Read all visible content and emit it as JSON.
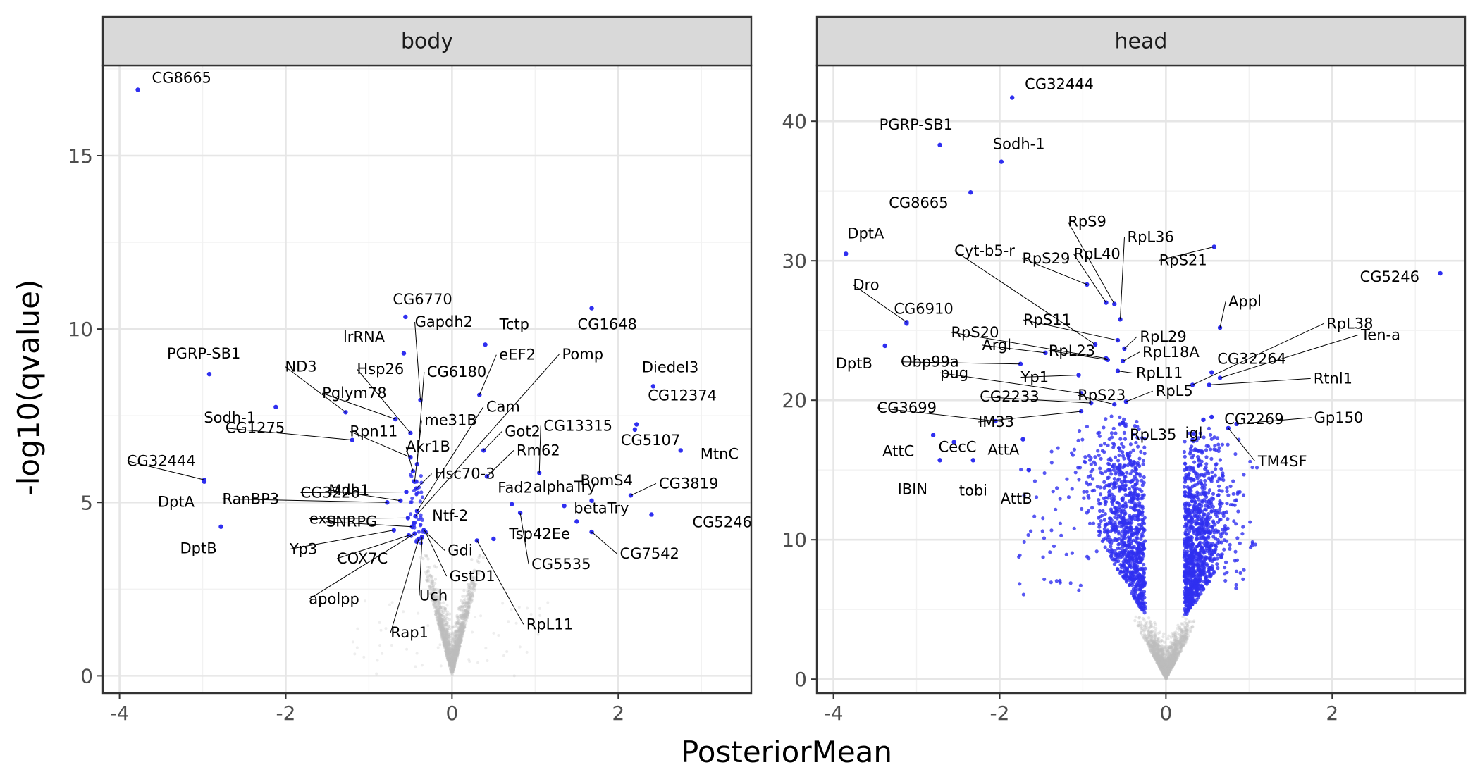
{
  "figure": {
    "xlabel": "PosteriorMean",
    "ylabel": "-log10(qvalue)"
  },
  "chart_data": [
    {
      "type": "scatter",
      "panel": "body",
      "xlabel": "PosteriorMean",
      "ylabel": "-log10(qvalue)",
      "xlim": [
        -4.2,
        3.6
      ],
      "ylim": [
        -0.5,
        17.6
      ],
      "x_ticks": [
        -4,
        -2,
        0,
        2
      ],
      "y_ticks": [
        0,
        5,
        10,
        15
      ],
      "grid": true,
      "colors": {
        "significant": "#2f2ff0",
        "non_significant": "#bdbdbd"
      },
      "labeled_points": [
        {
          "label": "CG8665",
          "x": -3.78,
          "y": 16.9
        },
        {
          "label": "PGRP-SB1",
          "x": -2.92,
          "y": 8.7
        },
        {
          "label": "Sodh-1",
          "x": -2.12,
          "y": 7.75
        },
        {
          "label": "CG32444",
          "x": -2.98,
          "y": 5.65
        },
        {
          "label": "DptA",
          "x": -2.98,
          "y": 5.6
        },
        {
          "label": "DptB",
          "x": -2.78,
          "y": 4.3
        },
        {
          "label": "CG1275",
          "x": -1.2,
          "y": 6.8
        },
        {
          "label": "ND3",
          "x": -1.28,
          "y": 7.6
        },
        {
          "label": "lrRNA",
          "x": -0.58,
          "y": 9.3
        },
        {
          "label": "Pglym78",
          "x": -0.68,
          "y": 7.4
        },
        {
          "label": "Hsp26",
          "x": -0.5,
          "y": 7.0
        },
        {
          "label": "Gapdh2",
          "x": -0.38,
          "y": 7.95
        },
        {
          "label": "CG6770",
          "x": -0.56,
          "y": 10.35
        },
        {
          "label": "CG6180",
          "x": -0.42,
          "y": 6.1
        },
        {
          "label": "Rpn11",
          "x": -0.5,
          "y": 6.3
        },
        {
          "label": "Akr1B",
          "x": -0.47,
          "y": 5.9
        },
        {
          "label": "me31B",
          "x": -0.45,
          "y": 5.6
        },
        {
          "label": "CG3226",
          "x": -0.55,
          "y": 5.3
        },
        {
          "label": "Hsc70-3",
          "x": -0.43,
          "y": 5.4
        },
        {
          "label": "Mdh1",
          "x": -0.62,
          "y": 5.05
        },
        {
          "label": "RanBP3",
          "x": -0.78,
          "y": 5.0
        },
        {
          "label": "Cam",
          "x": -0.42,
          "y": 4.75
        },
        {
          "label": "Pomp",
          "x": -0.44,
          "y": 4.6
        },
        {
          "label": "Tctp",
          "x": 0.4,
          "y": 9.55
        },
        {
          "label": "eEF2",
          "x": 0.33,
          "y": 8.1
        },
        {
          "label": "Got2",
          "x": 0.38,
          "y": 6.5
        },
        {
          "label": "CG13315",
          "x": 1.05,
          "y": 5.85
        },
        {
          "label": "Rm62",
          "x": 0.42,
          "y": 5.75
        },
        {
          "label": "Ntf-2",
          "x": -0.46,
          "y": 4.4
        },
        {
          "label": "exu",
          "x": -0.53,
          "y": 4.55
        },
        {
          "label": "SNRPG",
          "x": -0.48,
          "y": 4.3
        },
        {
          "label": "Yp3",
          "x": -0.7,
          "y": 4.2
        },
        {
          "label": "COX7C",
          "x": -0.52,
          "y": 4.05
        },
        {
          "label": "apolpp",
          "x": -0.45,
          "y": 4.1
        },
        {
          "label": "Rap1",
          "x": -0.4,
          "y": 3.95
        },
        {
          "label": "Uch",
          "x": -0.36,
          "y": 4.0
        },
        {
          "label": "Gdi",
          "x": -0.34,
          "y": 4.2
        },
        {
          "label": "GstD1",
          "x": -0.32,
          "y": 4.15
        },
        {
          "label": "RpL11",
          "x": 0.3,
          "y": 3.9
        },
        {
          "label": "Tsp42Ee",
          "x": 0.5,
          "y": 3.95
        },
        {
          "label": "CG5535",
          "x": 0.82,
          "y": 4.7
        },
        {
          "label": "Fad2",
          "x": 0.72,
          "y": 4.95
        },
        {
          "label": "alphaTry",
          "x": 1.35,
          "y": 4.9
        },
        {
          "label": "BomS4",
          "x": 1.68,
          "y": 5.05
        },
        {
          "label": "betaTry",
          "x": 1.5,
          "y": 4.45
        },
        {
          "label": "CG7542",
          "x": 1.68,
          "y": 4.15
        },
        {
          "label": "CG1648",
          "x": 1.68,
          "y": 10.6
        },
        {
          "label": "Diedel3",
          "x": 2.42,
          "y": 8.35
        },
        {
          "label": "CG12374",
          "x": 2.22,
          "y": 7.25
        },
        {
          "label": "CG5107",
          "x": 2.2,
          "y": 7.1
        },
        {
          "label": "MtnC",
          "x": 2.75,
          "y": 6.5
        },
        {
          "label": "CG3819",
          "x": 2.15,
          "y": 5.2
        },
        {
          "label": "CG5246",
          "x": 2.4,
          "y": 4.65
        }
      ]
    },
    {
      "type": "scatter",
      "panel": "head",
      "xlabel": "PosteriorMean",
      "ylabel": "-log10(qvalue)",
      "xlim": [
        -4.2,
        3.6
      ],
      "ylim": [
        -1.0,
        44.0
      ],
      "x_ticks": [
        -4,
        -2,
        0,
        2
      ],
      "y_ticks": [
        0,
        10,
        20,
        30,
        40
      ],
      "grid": true,
      "colors": {
        "significant": "#2f2ff0",
        "non_significant": "#bdbdbd"
      },
      "labeled_points": [
        {
          "label": "CG32444",
          "x": -1.85,
          "y": 41.7
        },
        {
          "label": "PGRP-SB1",
          "x": -2.72,
          "y": 38.3
        },
        {
          "label": "Sodh-1",
          "x": -1.98,
          "y": 37.1
        },
        {
          "label": "CG8665",
          "x": -2.35,
          "y": 34.9
        },
        {
          "label": "DptA",
          "x": -3.85,
          "y": 30.5
        },
        {
          "label": "CG5246",
          "x": 3.3,
          "y": 29.1
        },
        {
          "label": "Dro",
          "x": -3.12,
          "y": 25.6
        },
        {
          "label": "CG6910",
          "x": -3.12,
          "y": 25.5
        },
        {
          "label": "DptB",
          "x": -3.38,
          "y": 23.9
        },
        {
          "label": "Cyt-b5-r",
          "x": -0.85,
          "y": 24.0
        },
        {
          "label": "RpS9",
          "x": -0.62,
          "y": 26.9
        },
        {
          "label": "RpL36",
          "x": -0.55,
          "y": 25.8
        },
        {
          "label": "RpS29",
          "x": -0.95,
          "y": 28.3
        },
        {
          "label": "RpL40",
          "x": -0.72,
          "y": 27.0
        },
        {
          "label": "RpS21",
          "x": 0.58,
          "y": 31.0
        },
        {
          "label": "RpS20",
          "x": -0.72,
          "y": 23.0
        },
        {
          "label": "RpS11",
          "x": -0.58,
          "y": 24.3
        },
        {
          "label": "RpL29",
          "x": -0.5,
          "y": 23.7
        },
        {
          "label": "Appl",
          "x": 0.65,
          "y": 25.2
        },
        {
          "label": "RpL38",
          "x": 0.32,
          "y": 21.1
        },
        {
          "label": "Argl",
          "x": -1.45,
          "y": 23.4
        },
        {
          "label": "RpL23",
          "x": -0.7,
          "y": 22.9
        },
        {
          "label": "RpL18A",
          "x": -0.52,
          "y": 22.8
        },
        {
          "label": "Ten-a",
          "x": 0.65,
          "y": 21.6
        },
        {
          "label": "Obp99a",
          "x": -1.75,
          "y": 22.6
        },
        {
          "label": "RpL11",
          "x": -0.58,
          "y": 22.1
        },
        {
          "label": "CG32264",
          "x": 0.55,
          "y": 22.0
        },
        {
          "label": "Yp1",
          "x": -1.05,
          "y": 21.8
        },
        {
          "label": "Rtnl1",
          "x": 0.52,
          "y": 21.1
        },
        {
          "label": "pug",
          "x": -1.02,
          "y": 20.5
        },
        {
          "label": "CG2233",
          "x": -0.9,
          "y": 19.8
        },
        {
          "label": "RpS23",
          "x": -0.62,
          "y": 19.7
        },
        {
          "label": "RpL5",
          "x": -0.48,
          "y": 19.9
        },
        {
          "label": "CG3699",
          "x": -2.05,
          "y": 18.5
        },
        {
          "label": "CG2269",
          "x": 0.55,
          "y": 18.8
        },
        {
          "label": "IM33",
          "x": -1.02,
          "y": 19.2
        },
        {
          "label": "RpL35",
          "x": -0.52,
          "y": 18.4
        },
        {
          "label": "igl",
          "x": 0.45,
          "y": 18.6
        },
        {
          "label": "Gp150",
          "x": 0.85,
          "y": 18.3
        },
        {
          "label": "TM4SF",
          "x": 0.75,
          "y": 18.0
        },
        {
          "label": "AttC",
          "x": -2.8,
          "y": 17.5
        },
        {
          "label": "CecC",
          "x": -2.55,
          "y": 17.0
        },
        {
          "label": "AttA",
          "x": -1.72,
          "y": 17.2
        },
        {
          "label": "IBIN",
          "x": -2.72,
          "y": 15.7
        },
        {
          "label": "tobi",
          "x": -2.32,
          "y": 15.7
        },
        {
          "label": "AttB",
          "x": -1.65,
          "y": 15.0
        }
      ]
    }
  ]
}
